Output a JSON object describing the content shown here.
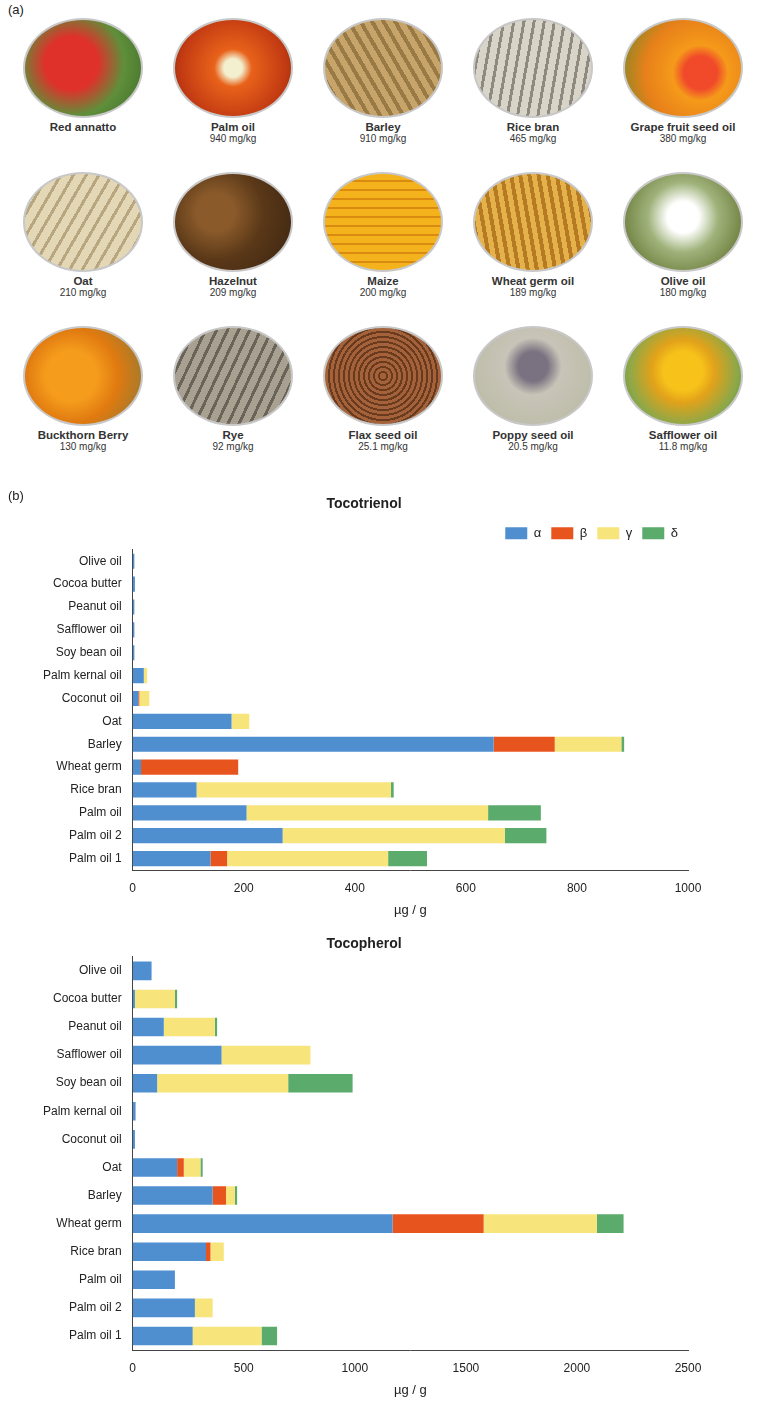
{
  "panel_a": {
    "letter": "(a)",
    "items": [
      {
        "label": "Red annatto"
      },
      {
        "label": "Palm oil",
        "amount": "940 mg/kg"
      },
      {
        "label": "Barley",
        "amount": "910 mg/kg"
      },
      {
        "label": "Rice bran",
        "amount": "465 mg/kg"
      },
      {
        "label": "Grape fruit seed oil",
        "amount": "380 mg/kg"
      },
      {
        "label": "Oat",
        "amount": "210 mg/kg"
      },
      {
        "label": "Hazelnut",
        "amount": "209 mg/kg"
      },
      {
        "label": "Maize",
        "amount": "200 mg/kg"
      },
      {
        "label": "Wheat germ oil",
        "amount": "189 mg/kg"
      },
      {
        "label": "Olive oil",
        "amount": "180 mg/kg"
      },
      {
        "label": "Buckthorn Berry",
        "amount": "130 mg/kg"
      },
      {
        "label": "Rye",
        "amount": "92 mg/kg"
      },
      {
        "label": "Flax seed oil",
        "amount": "25.1 mg/kg"
      },
      {
        "label": "Poppy seed oil",
        "amount": "20.5 mg/kg"
      },
      {
        "label": "Safflower oil",
        "amount": "11.8 mg/kg"
      }
    ]
  },
  "panel_b": {
    "letter": "(b)"
  },
  "chart_data": [
    {
      "type": "bar",
      "title": "Tocotrienol",
      "orientation": "horizontal",
      "stacked": true,
      "grid": false,
      "legend": "top-right",
      "xlabel": "µg / g",
      "categories": [
        "Olive oil",
        "Cocoa butter",
        "Peanut oil",
        "Safflower oil",
        "Soy bean oil",
        "Palm kernal oil",
        "Coconut oil",
        "Oat",
        "Barley",
        "Wheat germ",
        "Rice bran",
        "Palm oil",
        "Palm oil 2",
        "Palm oil 1"
      ],
      "series": [
        {
          "name": "α",
          "color": "#4f8fd0",
          "values": [
            3,
            4,
            3,
            3,
            3,
            20,
            10,
            178,
            650,
            15,
            115,
            205,
            270,
            140
          ]
        },
        {
          "name": "β",
          "color": "#e8541e",
          "values": [
            0,
            0,
            0,
            0,
            0,
            0,
            2,
            0,
            110,
            175,
            0,
            0,
            0,
            30
          ]
        },
        {
          "name": "γ",
          "color": "#f7e47a",
          "values": [
            0,
            0,
            0,
            0,
            0,
            6,
            18,
            32,
            120,
            0,
            350,
            435,
            400,
            290
          ]
        },
        {
          "name": "δ",
          "color": "#5aab6c",
          "values": [
            0,
            0,
            0,
            0,
            0,
            0,
            0,
            0,
            5,
            0,
            5,
            95,
            75,
            70
          ]
        }
      ],
      "xlim": [
        0,
        1000
      ],
      "xticks": [
        0,
        200,
        400,
        600,
        800,
        1000
      ]
    },
    {
      "type": "bar",
      "title": "Tocopherol",
      "orientation": "horizontal",
      "stacked": true,
      "grid": false,
      "xlabel": "µg / g",
      "categories": [
        "Olive oil",
        "Cocoa butter",
        "Peanut oil",
        "Safflower oil",
        "Soy bean oil",
        "Palm kernal oil",
        "Coconut oil",
        "Oat",
        "Barley",
        "Wheat germ",
        "Rice bran",
        "Palm oil",
        "Palm oil 2",
        "Palm oil 1"
      ],
      "series": [
        {
          "name": "α",
          "color": "#4f8fd0",
          "values": [
            85,
            10,
            140,
            400,
            110,
            13,
            10,
            200,
            360,
            1170,
            330,
            190,
            280,
            270
          ]
        },
        {
          "name": "β",
          "color": "#e8541e",
          "values": [
            0,
            0,
            0,
            0,
            0,
            0,
            0,
            30,
            60,
            410,
            20,
            0,
            0,
            0
          ]
        },
        {
          "name": "γ",
          "color": "#f7e47a",
          "values": [
            0,
            180,
            230,
            400,
            590,
            0,
            0,
            75,
            40,
            510,
            60,
            0,
            80,
            310
          ]
        },
        {
          "name": "δ",
          "color": "#5aab6c",
          "values": [
            0,
            10,
            10,
            0,
            290,
            0,
            0,
            10,
            10,
            120,
            0,
            0,
            0,
            70
          ]
        }
      ],
      "xlim": [
        0,
        2500
      ],
      "xticks": [
        0,
        500,
        1000,
        1500,
        2000,
        2500
      ]
    }
  ]
}
